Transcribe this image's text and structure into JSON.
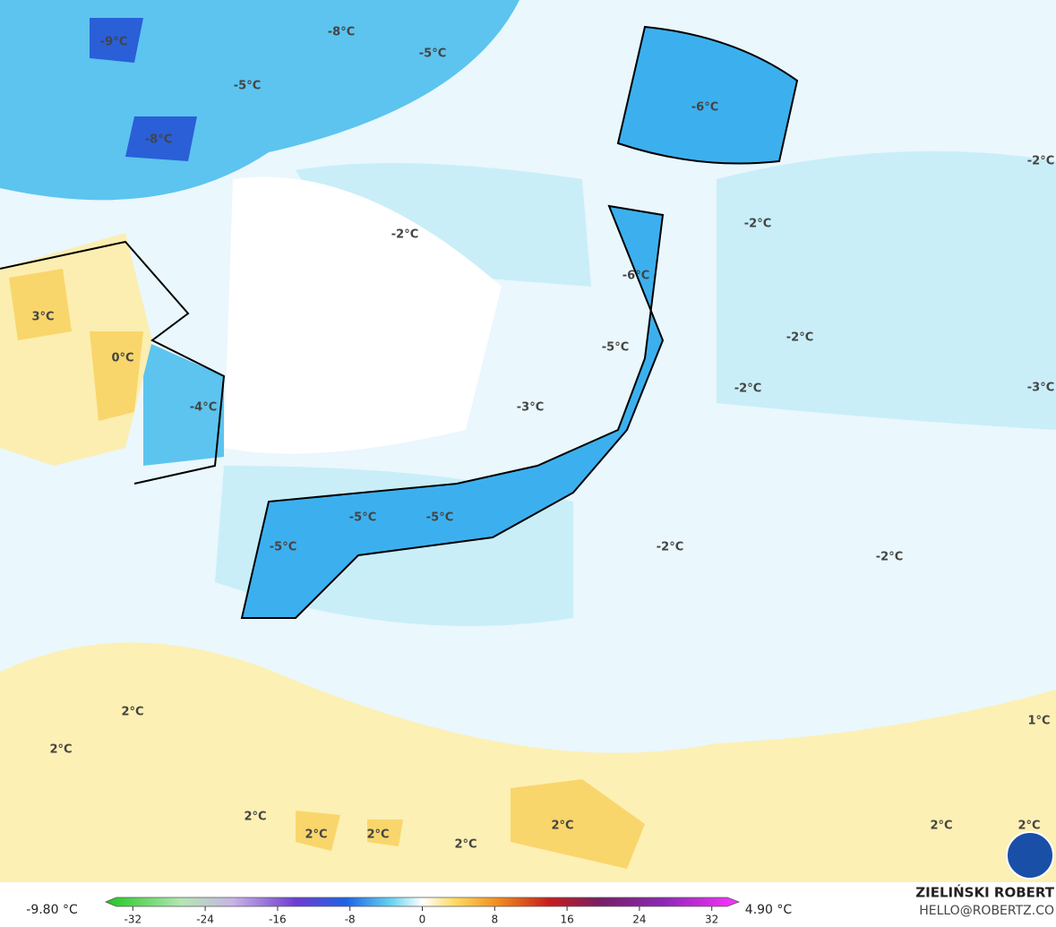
{
  "map": {
    "labels": [
      "-9°C",
      "-8°C",
      "-5°C",
      "-5°C",
      "-8°C",
      "-6°C",
      "-2°C",
      "-2°C",
      "-2°C",
      "-6°C",
      "3°C",
      "0°C",
      "-5°C",
      "-2°C",
      "-2°C",
      "-3°C",
      "-4°C",
      "-3°C",
      "-5°C",
      "-5°C",
      "-5°C",
      "-2°C",
      "-2°C",
      "2°C",
      "1°C",
      "2°C",
      "2°C",
      "2°C",
      "2°C",
      "2°C",
      "2°C",
      "2°C",
      "2°C"
    ]
  },
  "colorbar": {
    "min_label": "-9.80 °C",
    "max_label": "4.90 °C",
    "lim": [
      -35,
      35
    ],
    "ticks": [
      -32,
      -24,
      -16,
      -8,
      0,
      8,
      16,
      24,
      32
    ]
  },
  "credit": {
    "name": "ZIELIŃSKI ROBERT",
    "site": "HELLO@ROBERTZ.CO"
  }
}
